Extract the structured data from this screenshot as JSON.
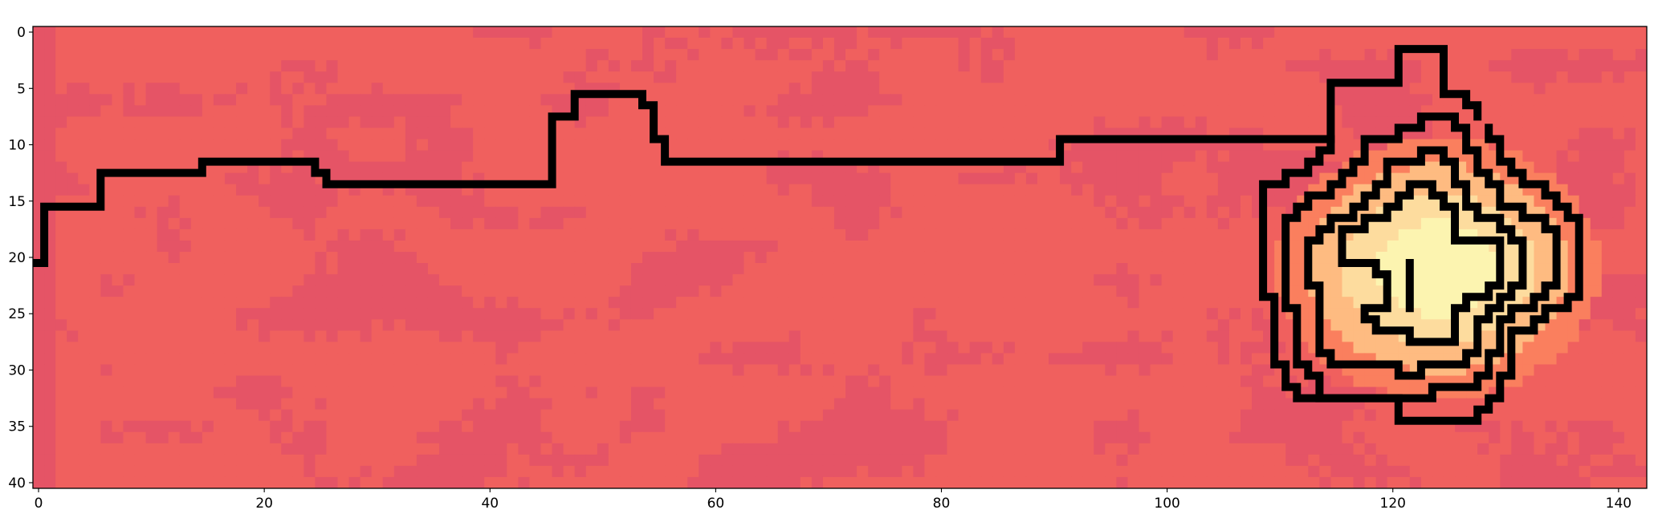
{
  "chart_data": {
    "type": "heatmap",
    "title": "",
    "xlabel": "",
    "ylabel": "",
    "xlim": [
      -0.5,
      142.5
    ],
    "ylim": [
      40.5,
      -0.5
    ],
    "grid": false,
    "x_ticks": [
      0,
      20,
      40,
      60,
      80,
      100,
      120,
      140
    ],
    "y_ticks": [
      0,
      5,
      10,
      15,
      20,
      25,
      30,
      35,
      40
    ],
    "grid_shape": [
      41,
      143
    ],
    "background_colors": {
      "base": "#f0605e",
      "dark_patch": "#e55466",
      "left_edge": "#e55466"
    },
    "peak": {
      "center": [
        124,
        21
      ],
      "level_colors": [
        "#f0605e",
        "#fa7f5e",
        "#febb81",
        "#fddc9e",
        "#fcf4b0"
      ]
    },
    "contour_lines": [
      {
        "name": "",
        "color": "#000000",
        "points": [
          [
            -0.5,
            20.5
          ],
          [
            0.5,
            20.5
          ],
          [
            0.5,
            15.5
          ],
          [
            5.5,
            15.5
          ],
          [
            5.5,
            12.5
          ],
          [
            14.5,
            12.5
          ],
          [
            14.5,
            11.5
          ],
          [
            24.5,
            11.5
          ],
          [
            24.5,
            12.5
          ],
          [
            25.5,
            12.5
          ],
          [
            25.5,
            13.5
          ],
          [
            45.5,
            13.5
          ],
          [
            45.5,
            7.5
          ],
          [
            47.5,
            7.5
          ],
          [
            47.5,
            5.5
          ],
          [
            53.5,
            5.5
          ],
          [
            53.5,
            6.5
          ],
          [
            54.5,
            6.5
          ],
          [
            54.5,
            9.5
          ],
          [
            55.5,
            9.5
          ],
          [
            55.5,
            11.5
          ],
          [
            90.5,
            11.5
          ],
          [
            90.5,
            9.5
          ],
          [
            114.5,
            9.5
          ],
          [
            114.5,
            4.5
          ],
          [
            120.5,
            4.5
          ],
          [
            120.5,
            1.5
          ],
          [
            124.5,
            1.5
          ],
          [
            124.5,
            5.5
          ],
          [
            126.5,
            5.5
          ],
          [
            126.5,
            6.5
          ],
          [
            127.5,
            6.5
          ],
          [
            127.5,
            7.5
          ]
        ]
      },
      {
        "name": "",
        "color": "#000000",
        "points": [
          [
            128.5,
            8.5
          ],
          [
            128.5,
            9.5
          ],
          [
            129.5,
            9.5
          ],
          [
            129.5,
            11.5
          ],
          [
            130.5,
            11.5
          ],
          [
            130.5,
            12.5
          ],
          [
            131.5,
            12.5
          ],
          [
            131.5,
            13.5
          ],
          [
            133.5,
            13.5
          ],
          [
            133.5,
            14.5
          ],
          [
            134.5,
            14.5
          ],
          [
            134.5,
            15.5
          ],
          [
            135.5,
            15.5
          ],
          [
            135.5,
            16.5
          ],
          [
            136.5,
            16.5
          ],
          [
            136.5,
            23.5
          ],
          [
            135.5,
            23.5
          ],
          [
            135.5,
            24.5
          ],
          [
            133.5,
            24.5
          ],
          [
            133.5,
            25.5
          ],
          [
            132.5,
            25.5
          ],
          [
            132.5,
            26.5
          ],
          [
            130.5,
            26.5
          ],
          [
            130.5,
            30.5
          ],
          [
            129.5,
            30.5
          ],
          [
            129.5,
            32.5
          ],
          [
            128.5,
            32.5
          ],
          [
            128.5,
            33.5
          ],
          [
            127.5,
            33.5
          ],
          [
            127.5,
            34.5
          ],
          [
            120.5,
            34.5
          ],
          [
            120.5,
            32.5
          ],
          [
            111.5,
            32.5
          ],
          [
            111.5,
            31.5
          ],
          [
            110.5,
            31.5
          ],
          [
            110.5,
            29.5
          ],
          [
            109.5,
            29.5
          ],
          [
            109.5,
            23.5
          ],
          [
            108.5,
            23.5
          ],
          [
            108.5,
            19.5
          ],
          [
            108.5,
            13.5
          ],
          [
            110.5,
            13.5
          ],
          [
            110.5,
            12.5
          ],
          [
            112.5,
            12.5
          ],
          [
            112.5,
            11.5
          ],
          [
            113.5,
            11.5
          ],
          [
            113.5,
            10.5
          ],
          [
            114.5,
            10.5
          ],
          [
            114.5,
            9.5
          ]
        ]
      },
      {
        "name": "",
        "color": "#000000",
        "points": [
          [
            117.5,
            9.5
          ],
          [
            120.5,
            9.5
          ],
          [
            120.5,
            8.5
          ],
          [
            122.5,
            8.5
          ],
          [
            122.5,
            7.5
          ],
          [
            125.5,
            7.5
          ],
          [
            125.5,
            8.5
          ],
          [
            126.5,
            8.5
          ],
          [
            126.5,
            10.5
          ],
          [
            127.5,
            10.5
          ],
          [
            127.5,
            12.5
          ],
          [
            128.5,
            12.5
          ],
          [
            128.5,
            13.5
          ],
          [
            129.5,
            13.5
          ],
          [
            129.5,
            15.5
          ],
          [
            131.5,
            15.5
          ],
          [
            131.5,
            16.5
          ],
          [
            133.5,
            16.5
          ],
          [
            133.5,
            17.5
          ],
          [
            134.5,
            17.5
          ],
          [
            134.5,
            22.5
          ],
          [
            133.5,
            22.5
          ],
          [
            133.5,
            23.5
          ],
          [
            132.5,
            23.5
          ],
          [
            132.5,
            24.5
          ],
          [
            130.5,
            24.5
          ],
          [
            130.5,
            25.5
          ],
          [
            129.5,
            25.5
          ],
          [
            129.5,
            28.5
          ],
          [
            128.5,
            28.5
          ],
          [
            128.5,
            30.5
          ],
          [
            127.5,
            30.5
          ],
          [
            127.5,
            31.5
          ],
          [
            123.5,
            31.5
          ],
          [
            123.5,
            32.5
          ],
          [
            113.5,
            32.5
          ],
          [
            113.5,
            30.5
          ],
          [
            112.5,
            30.5
          ],
          [
            112.5,
            29.5
          ],
          [
            111.5,
            29.5
          ],
          [
            111.5,
            24.5
          ],
          [
            110.5,
            24.5
          ],
          [
            110.5,
            16.5
          ],
          [
            111.5,
            16.5
          ],
          [
            111.5,
            15.5
          ],
          [
            112.5,
            15.5
          ],
          [
            112.5,
            14.5
          ],
          [
            114.5,
            14.5
          ],
          [
            114.5,
            13.5
          ],
          [
            115.5,
            13.5
          ],
          [
            115.5,
            12.5
          ],
          [
            116.5,
            12.5
          ],
          [
            116.5,
            11.5
          ],
          [
            117.5,
            11.5
          ],
          [
            117.5,
            9.5
          ]
        ]
      },
      {
        "name": "",
        "color": "#000000",
        "points": [
          [
            119.5,
            11.5
          ],
          [
            122.5,
            11.5
          ],
          [
            122.5,
            10.5
          ],
          [
            124.5,
            10.5
          ],
          [
            124.5,
            11.5
          ],
          [
            125.5,
            11.5
          ],
          [
            125.5,
            13.5
          ],
          [
            126.5,
            13.5
          ],
          [
            126.5,
            15.5
          ],
          [
            127.5,
            15.5
          ],
          [
            127.5,
            16.5
          ],
          [
            129.5,
            16.5
          ],
          [
            129.5,
            17.5
          ],
          [
            130.5,
            17.5
          ],
          [
            130.5,
            18.5
          ],
          [
            131.5,
            18.5
          ],
          [
            131.5,
            22.5
          ],
          [
            130.5,
            22.5
          ],
          [
            130.5,
            23.5
          ],
          [
            129.5,
            23.5
          ],
          [
            129.5,
            24.5
          ],
          [
            128.5,
            24.5
          ],
          [
            128.5,
            25.5
          ],
          [
            127.5,
            25.5
          ],
          [
            127.5,
            28.5
          ],
          [
            126.5,
            28.5
          ],
          [
            126.5,
            29.5
          ],
          [
            122.5,
            29.5
          ],
          [
            122.5,
            30.5
          ],
          [
            120.5,
            30.5
          ],
          [
            120.5,
            29.5
          ],
          [
            114.5,
            29.5
          ],
          [
            114.5,
            28.5
          ],
          [
            113.5,
            28.5
          ],
          [
            113.5,
            22.5
          ],
          [
            112.5,
            22.5
          ],
          [
            112.5,
            18.5
          ],
          [
            113.5,
            18.5
          ],
          [
            113.5,
            17.5
          ],
          [
            114.5,
            17.5
          ],
          [
            114.5,
            16.5
          ],
          [
            116.5,
            16.5
          ],
          [
            116.5,
            15.5
          ],
          [
            117.5,
            15.5
          ],
          [
            117.5,
            14.5
          ],
          [
            118.5,
            14.5
          ],
          [
            118.5,
            13.5
          ],
          [
            119.5,
            13.5
          ],
          [
            119.5,
            11.5
          ]
        ]
      },
      {
        "name": "",
        "color": "#000000",
        "points": [
          [
            121.5,
            13.5
          ],
          [
            123.5,
            13.5
          ],
          [
            123.5,
            14.5
          ],
          [
            124.5,
            14.5
          ],
          [
            124.5,
            15.5
          ],
          [
            125.5,
            15.5
          ],
          [
            125.5,
            18.5
          ],
          [
            129.5,
            18.5
          ],
          [
            129.5,
            22.5
          ],
          [
            128.5,
            22.5
          ],
          [
            128.5,
            23.5
          ],
          [
            126.5,
            23.5
          ],
          [
            126.5,
            24.5
          ],
          [
            125.5,
            24.5
          ],
          [
            125.5,
            27.5
          ],
          [
            121.5,
            27.5
          ],
          [
            121.5,
            26.5
          ],
          [
            118.5,
            26.5
          ],
          [
            118.5,
            25.5
          ],
          [
            117.5,
            25.5
          ],
          [
            117.5,
            24.5
          ],
          [
            119.5,
            24.5
          ],
          [
            119.5,
            21.5
          ],
          [
            118.5,
            21.5
          ],
          [
            118.5,
            20.5
          ],
          [
            115.5,
            20.5
          ],
          [
            115.5,
            17.5
          ],
          [
            117.5,
            17.5
          ],
          [
            117.5,
            16.5
          ],
          [
            119.5,
            16.5
          ],
          [
            119.5,
            15.5
          ],
          [
            120.5,
            15.5
          ],
          [
            120.5,
            14.5
          ],
          [
            121.5,
            14.5
          ],
          [
            121.5,
            13.5
          ]
        ]
      },
      {
        "name": "",
        "color": "#000000",
        "points": [
          [
            121.5,
            20.5
          ],
          [
            121.5,
            24.5
          ]
        ]
      }
    ]
  }
}
